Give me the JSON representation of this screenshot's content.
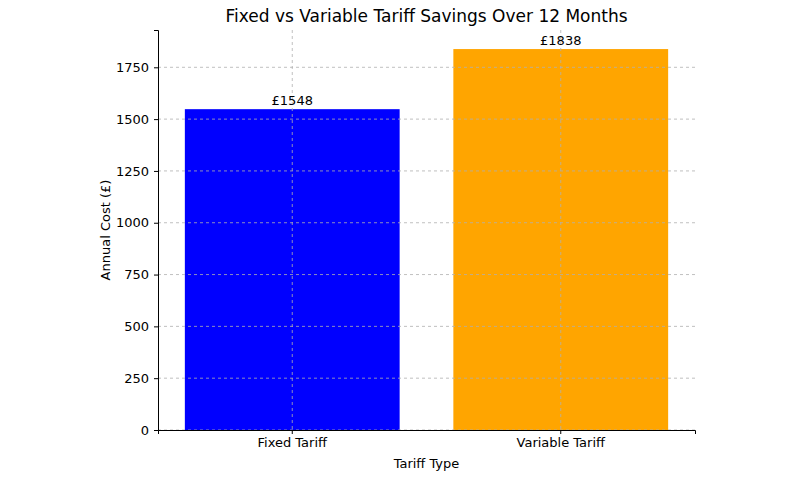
{
  "chart_data": {
    "type": "bar",
    "title": "Fixed vs Variable Tariff Savings Over 12 Months",
    "x_label": "Tariff Type",
    "y_label": "Annual Cost (£)",
    "categories": [
      "Fixed Tariff",
      "Variable Tariff"
    ],
    "values": [
      1548,
      1838
    ],
    "value_labels": [
      "£1548",
      "£1838"
    ],
    "colors": [
      "#0000ff",
      "#ffa500"
    ],
    "ylim": [
      0,
      1930
    ],
    "yticks": [
      0,
      250,
      500,
      750,
      1000,
      1250,
      1500,
      1750
    ],
    "grid": true,
    "data_labels": true
  }
}
